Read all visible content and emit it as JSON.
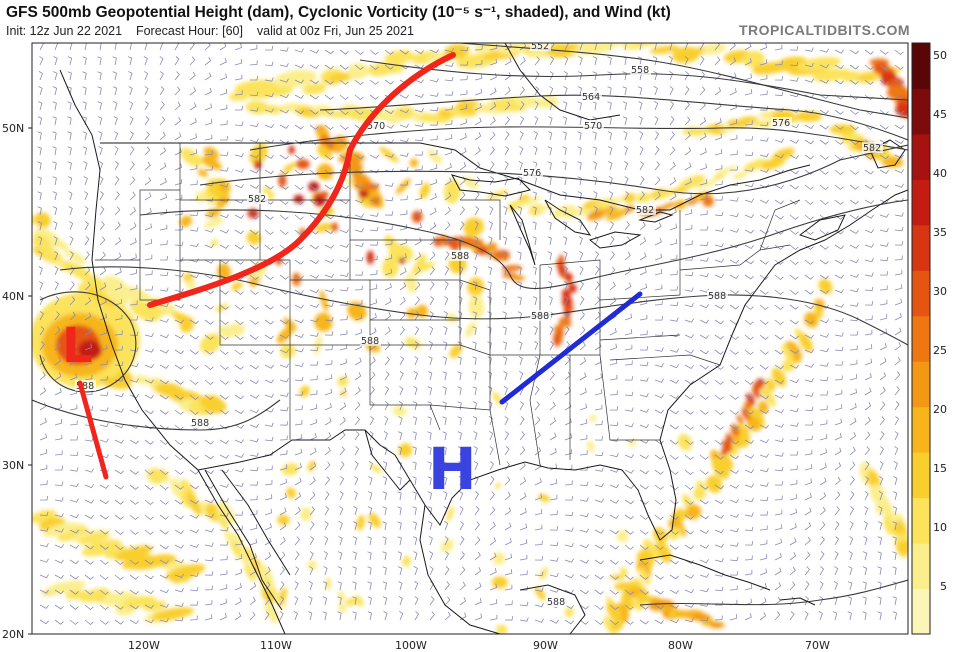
{
  "header": {
    "title": "GFS 500mb Geopotential Height (dam), Cyclonic Vorticity (10⁻⁵ s⁻¹, shaded), and Wind (kt)",
    "init": "Init: 12z Jun 22 2021",
    "forecast_hour": "Forecast Hour: [60]",
    "valid": "valid at 00z Fri, Jun 25 2021",
    "credit": "TROPICALTIDBITS.COM"
  },
  "axes": {
    "lat_labels": [
      "50N",
      "40N",
      "30N",
      "20N"
    ],
    "lon_labels": [
      "120W",
      "110W",
      "100W",
      "90W",
      "80W",
      "70W"
    ]
  },
  "colorbar": {
    "labels": [
      "50",
      "45",
      "40",
      "35",
      "30",
      "25",
      "20",
      "15",
      "10",
      "5"
    ],
    "colors": [
      "#fbf6b8",
      "#fbee8c",
      "#fbe35b",
      "#f9cf2e",
      "#f7b51b",
      "#f39814",
      "#ee7712",
      "#e55512",
      "#d83512",
      "#c41c12",
      "#a5120f",
      "#7e0b0b",
      "#5a0606"
    ]
  },
  "contours": {
    "labels": [
      "552",
      "558",
      "564",
      "570",
      "570",
      "576",
      "576",
      "582",
      "582",
      "582",
      "588",
      "588",
      "588",
      "588",
      "588",
      "588",
      "588"
    ]
  },
  "annotations": {
    "low_label": "L",
    "high_label": "H",
    "low_color": "#f0251c",
    "trough_color": "#f0251c",
    "ridge_color": "#1f2bd6",
    "high_color": "#3a43e0"
  }
}
